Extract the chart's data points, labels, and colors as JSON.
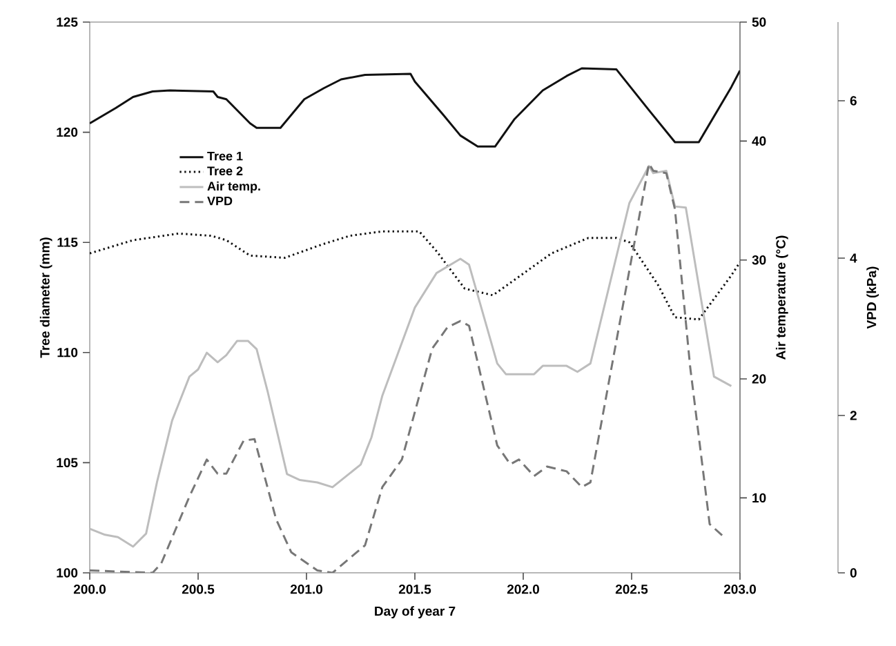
{
  "chart_data": {
    "type": "line",
    "xlabel": "Day of year 7",
    "ylabel": "Tree diameter (mm)",
    "y2label": "Air temperature (°C)",
    "y3label": "VPD (kPa)",
    "xlim": [
      200,
      203
    ],
    "xticks": [
      {
        "value": 200,
        "label": "200.0"
      },
      {
        "value": 200.5,
        "label": "200.5"
      },
      {
        "value": 201,
        "label": "201.0"
      },
      {
        "value": 201.5,
        "label": "201.5"
      },
      {
        "value": 202,
        "label": "202.0"
      },
      {
        "value": 202.5,
        "label": "202.5"
      },
      {
        "value": 203,
        "label": "203.0"
      }
    ],
    "ylim": [
      100,
      125
    ],
    "yticks": [
      100,
      105,
      110,
      115,
      120,
      125
    ],
    "y2lim": [
      3.7,
      50
    ],
    "y2ticks": [
      10,
      20,
      30,
      40,
      50
    ],
    "y3lim": [
      0,
      7
    ],
    "y3ticks": [
      0,
      2,
      4,
      6
    ],
    "legend": "top left",
    "grid": false,
    "series": [
      {
        "name": "Tree 1",
        "color": "#111111",
        "line_style": "solid",
        "axis": "y",
        "x": [
          200,
          200.12,
          200.2,
          200.29,
          200.37,
          200.57,
          200.59,
          200.63,
          200.74,
          200.77,
          200.88,
          200.99,
          201.08,
          201.16,
          201.27,
          201.48,
          201.5,
          201.63,
          201.71,
          201.79,
          201.87,
          201.96,
          202.09,
          202.2,
          202.27,
          202.43,
          202.58,
          202.7,
          202.81,
          202.96,
          203.0
        ],
        "values": [
          120.4,
          121.1,
          121.6,
          121.85,
          121.9,
          121.85,
          121.6,
          121.5,
          120.4,
          120.2,
          120.2,
          121.5,
          122.0,
          122.4,
          122.6,
          122.65,
          122.3,
          120.8,
          119.85,
          119.35,
          119.35,
          120.6,
          121.9,
          122.55,
          122.9,
          122.85,
          121.0,
          119.55,
          119.55,
          122.05,
          122.8
        ]
      },
      {
        "name": "Tree 2",
        "color": "#111111",
        "line_style": "dotted",
        "axis": "y",
        "x": [
          200,
          200.2,
          200.41,
          200.56,
          200.63,
          200.74,
          200.9,
          201.07,
          201.2,
          201.35,
          201.52,
          201.6,
          201.73,
          201.86,
          201.96,
          202.13,
          202.3,
          202.43,
          202.49,
          202.62,
          202.7,
          202.81,
          202.96,
          203.0
        ],
        "values": [
          114.5,
          115.1,
          115.4,
          115.3,
          115.1,
          114.4,
          114.3,
          114.9,
          115.3,
          115.5,
          115.5,
          114.6,
          112.9,
          112.6,
          113.3,
          114.5,
          115.2,
          115.2,
          115.0,
          113.1,
          111.6,
          111.5,
          113.5,
          114.1
        ]
      },
      {
        "name": "Air temp.",
        "color": "#bdbdbd",
        "line_style": "solid",
        "axis": "y2",
        "x": [
          200,
          200.07,
          200.13,
          200.2,
          200.26,
          200.31,
          200.38,
          200.46,
          200.5,
          200.54,
          200.59,
          200.63,
          200.68,
          200.73,
          200.77,
          200.82,
          200.91,
          200.97,
          201.05,
          201.12,
          201.25,
          201.3,
          201.35,
          201.5,
          201.6,
          201.71,
          201.75,
          201.88,
          201.92,
          202.05,
          202.09,
          202.2,
          202.25,
          202.31,
          202.49,
          202.58,
          202.6,
          202.66,
          202.7,
          202.75,
          202.88,
          202.96
        ],
        "values": [
          7.4,
          6.9,
          6.7,
          5.9,
          7.0,
          11.3,
          16.5,
          20.2,
          20.8,
          22.2,
          21.4,
          22.0,
          23.2,
          23.2,
          22.5,
          19.0,
          12.0,
          11.5,
          11.3,
          10.9,
          12.8,
          15.1,
          18.6,
          26.0,
          28.9,
          30.1,
          29.6,
          21.3,
          20.4,
          20.4,
          21.1,
          21.1,
          20.6,
          21.3,
          34.8,
          37.9,
          37.3,
          37.5,
          34.5,
          34.4,
          20.2,
          19.4
        ]
      },
      {
        "name": "VPD",
        "color": "#777777",
        "line_style": "dashed",
        "axis": "y3",
        "x": [
          200,
          200.29,
          200.33,
          200.46,
          200.54,
          200.59,
          200.63,
          200.71,
          200.76,
          200.86,
          200.93,
          201.05,
          201.12,
          201.27,
          201.35,
          201.44,
          201.58,
          201.65,
          201.71,
          201.75,
          201.88,
          201.94,
          201.98,
          202.05,
          202.11,
          202.2,
          202.27,
          202.31,
          202.58,
          202.6,
          202.66,
          202.7,
          202.77,
          202.86,
          202.92
        ],
        "values": [
          0.03,
          0.0,
          0.12,
          0.97,
          1.44,
          1.26,
          1.26,
          1.68,
          1.7,
          0.68,
          0.26,
          0.03,
          0.0,
          0.35,
          1.09,
          1.44,
          2.85,
          3.12,
          3.2,
          3.14,
          1.62,
          1.38,
          1.44,
          1.23,
          1.35,
          1.29,
          1.09,
          1.15,
          5.2,
          5.11,
          5.08,
          4.62,
          2.62,
          0.62,
          0.47
        ]
      }
    ]
  }
}
